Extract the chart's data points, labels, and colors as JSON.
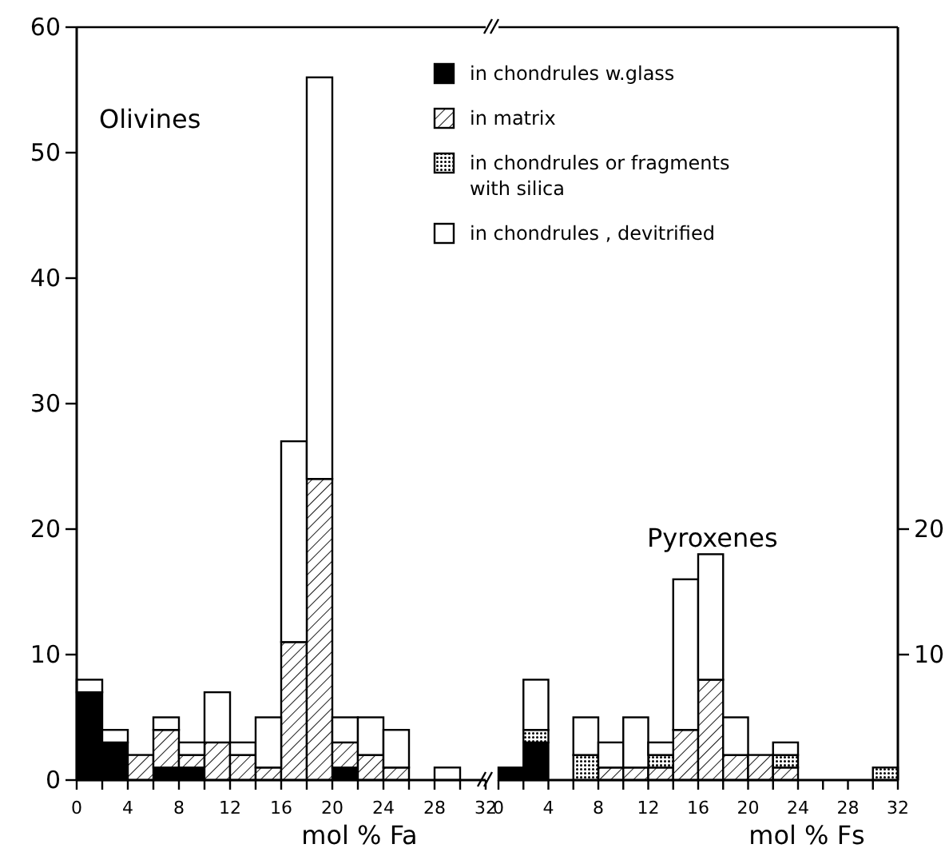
{
  "chart_data": [
    {
      "type": "bar",
      "title": "Olivines",
      "xlabel": "mol % Fa",
      "stacked": true,
      "legend": "top right",
      "x": [
        1,
        3,
        5,
        7,
        9,
        11,
        13,
        15,
        17,
        19,
        21,
        23,
        25,
        27,
        29,
        31
      ],
      "xlim": [
        0,
        32
      ],
      "xticks": [
        0,
        {
          "value": 2,
          "label": null
        },
        4,
        {
          "value": 6,
          "label": null
        },
        8,
        {
          "value": 10,
          "label": null
        },
        12,
        {
          "value": 14,
          "label": null
        },
        16,
        {
          "value": 18,
          "label": null
        },
        20,
        {
          "value": 22,
          "label": null
        },
        24,
        {
          "value": 26,
          "label": null
        },
        28,
        {
          "value": 30,
          "label": null
        },
        32
      ],
      "ylim": [
        0,
        60
      ],
      "yticks": [
        0,
        10,
        20,
        30,
        40,
        50,
        60
      ],
      "series": [
        {
          "name": "in chondrules w.glass",
          "color": "#000000",
          "values": [
            7,
            3,
            0,
            1,
            1,
            0,
            0,
            0,
            0,
            0,
            1,
            0,
            0,
            0,
            0,
            0
          ]
        },
        {
          "name": "in matrix",
          "color": "#000000",
          "values": [
            0,
            0,
            2,
            3,
            1,
            3,
            2,
            1,
            11,
            24,
            2,
            2,
            1,
            0,
            0,
            0
          ]
        },
        {
          "name": "in chondrules or fragments with silica",
          "color": "#000000",
          "values": [
            0,
            0,
            0,
            0,
            0,
            0,
            0,
            0,
            0,
            0,
            0,
            0,
            0,
            0,
            0,
            0
          ]
        },
        {
          "name": "in chondrules , devitrified",
          "color": "#ffffff",
          "values": [
            1,
            1,
            0,
            1,
            1,
            4,
            1,
            4,
            16,
            32,
            2,
            3,
            3,
            0,
            1,
            0
          ]
        }
      ]
    },
    {
      "type": "bar",
      "title": "Pyroxenes",
      "xlabel": "mol % Fs",
      "stacked": true,
      "x": [
        1,
        3,
        5,
        7,
        9,
        11,
        13,
        15,
        17,
        19,
        21,
        23,
        25,
        27,
        29,
        31
      ],
      "xlim": [
        0,
        32
      ],
      "xticks": [
        0,
        {
          "value": 2,
          "label": null
        },
        4,
        {
          "value": 6,
          "label": null
        },
        8,
        {
          "value": 10,
          "label": null
        },
        12,
        {
          "value": 14,
          "label": null
        },
        16,
        {
          "value": 18,
          "label": null
        },
        20,
        {
          "value": 22,
          "label": null
        },
        24,
        {
          "value": 26,
          "label": null
        },
        28,
        {
          "value": 30,
          "label": null
        },
        32
      ],
      "ylim": [
        0,
        60
      ],
      "yticks": [
        10,
        20
      ],
      "series": [
        {
          "color": "#000000",
          "values": [
            1,
            3,
            0,
            0,
            0,
            0,
            0,
            0,
            0,
            0,
            0,
            0,
            0,
            0,
            0,
            0
          ]
        },
        {
          "color": "#000000",
          "values": [
            0,
            0,
            0,
            0,
            1,
            1,
            1,
            4,
            8,
            2,
            2,
            1,
            0,
            0,
            0,
            0
          ]
        },
        {
          "color": "#000000",
          "values": [
            0,
            1,
            0,
            2,
            0,
            0,
            1,
            0,
            0,
            0,
            0,
            1,
            0,
            0,
            0,
            1
          ]
        },
        {
          "color": "#ffffff",
          "values": [
            0,
            4,
            0,
            3,
            2,
            4,
            1,
            12,
            10,
            3,
            0,
            1,
            0,
            0,
            0,
            0
          ]
        }
      ]
    }
  ]
}
